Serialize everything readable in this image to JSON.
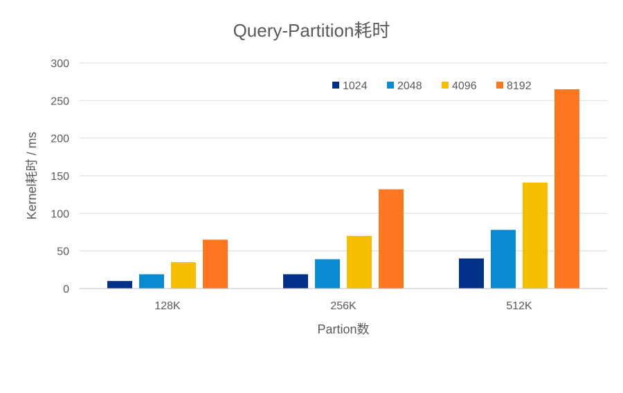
{
  "chart_data": {
    "type": "bar",
    "title": "Query-Partition耗时",
    "xlabel": "Partion数",
    "ylabel": "Kernel耗时 / ms",
    "categories": [
      "128K",
      "256K",
      "512K"
    ],
    "series": [
      {
        "name": "1024",
        "color": "#003087",
        "values": [
          10,
          19,
          40
        ]
      },
      {
        "name": "2048",
        "color": "#0a8ad1",
        "values": [
          19,
          39,
          78
        ]
      },
      {
        "name": "4096",
        "color": "#f5bf00",
        "values": [
          35,
          70,
          141
        ]
      },
      {
        "name": "8192",
        "color": "#ff7620",
        "values": [
          65,
          132,
          265
        ]
      }
    ],
    "ylim": [
      0,
      300
    ],
    "yticks": [
      0,
      50,
      100,
      150,
      200,
      250,
      300
    ],
    "grid": true,
    "legend_position": "top-right"
  }
}
